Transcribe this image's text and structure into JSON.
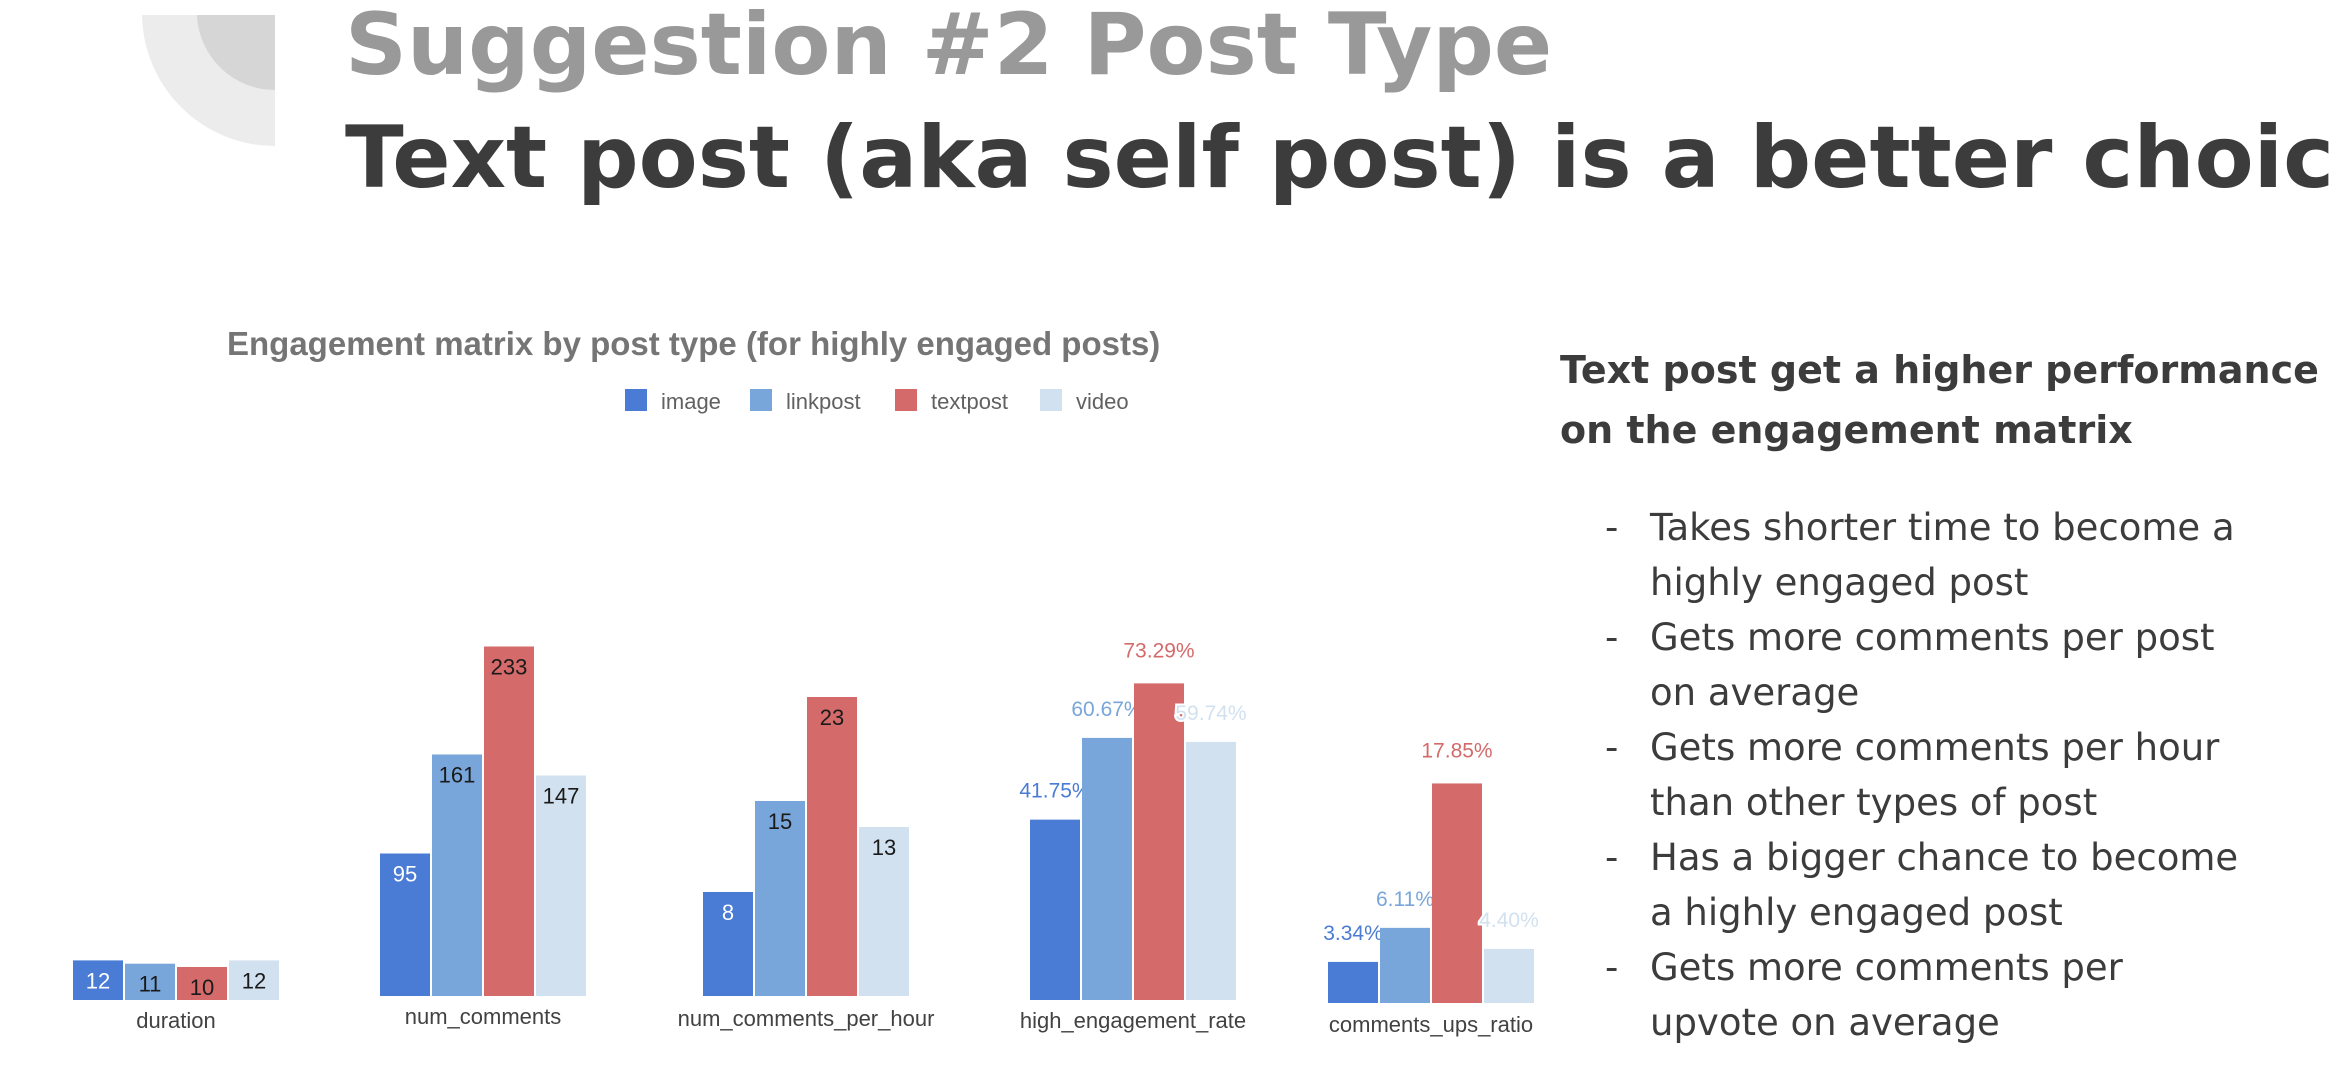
{
  "slide": {
    "title_top": "Suggestion #2 Post Type",
    "title_main": "Text post (aka self post) is a better choice"
  },
  "colors": {
    "image": "#4a7bd5",
    "linkpost": "#79a6da",
    "textpost": "#d46a6a",
    "video": "#d1e1f0"
  },
  "chart_data": {
    "type": "bar",
    "title": "Engagement matrix by post type (for highly engaged posts)",
    "legend_position": "top",
    "grid": false,
    "series": [
      {
        "name": "image",
        "color": "#4a7bd5"
      },
      {
        "name": "linkpost",
        "color": "#79a6da"
      },
      {
        "name": "textpost",
        "color": "#d46a6a"
      },
      {
        "name": "video",
        "color": "#d1e1f0"
      }
    ],
    "groups": [
      {
        "category": "duration",
        "values": [
          12,
          11,
          10,
          12
        ],
        "labels": [
          "12",
          "11",
          "10",
          "12"
        ],
        "label_style": "inside"
      },
      {
        "category": "num_comments",
        "values": [
          95,
          161,
          233,
          147
        ],
        "labels": [
          "95",
          "161",
          "233",
          "147"
        ],
        "label_style": "inside"
      },
      {
        "category": "num_comments_per_hour",
        "values": [
          8,
          15,
          23,
          13
        ],
        "labels": [
          "8",
          "15",
          "23",
          "13"
        ],
        "label_style": "inside"
      },
      {
        "category": "high_engagement_rate",
        "values": [
          41.75,
          60.67,
          73.29,
          59.74
        ],
        "labels": [
          "41.75%",
          "60.67%",
          "73.29%",
          "59.74%"
        ],
        "label_style": "above"
      },
      {
        "category": "comments_ups_ratio",
        "values": [
          3.34,
          6.11,
          17.85,
          4.4
        ],
        "labels": [
          "3.34%",
          "6.11%",
          "17.85%",
          "4.40%"
        ],
        "label_style": "above"
      }
    ]
  },
  "summary": {
    "heading": "Text post get a higher performance on the engagement matrix",
    "bullets": [
      {
        "dash": "-",
        "text": "Takes shorter time to become a highly engaged post"
      },
      {
        "dash": "-",
        "text": "Gets more comments per post on average"
      },
      {
        "dash": "-",
        "text": "Gets more comments per hour than other types of post"
      },
      {
        "dash": "-",
        "text": "Has a bigger chance to become a highly engaged post"
      },
      {
        "dash": "-",
        "text": "Gets more comments per upvote on average"
      }
    ]
  }
}
